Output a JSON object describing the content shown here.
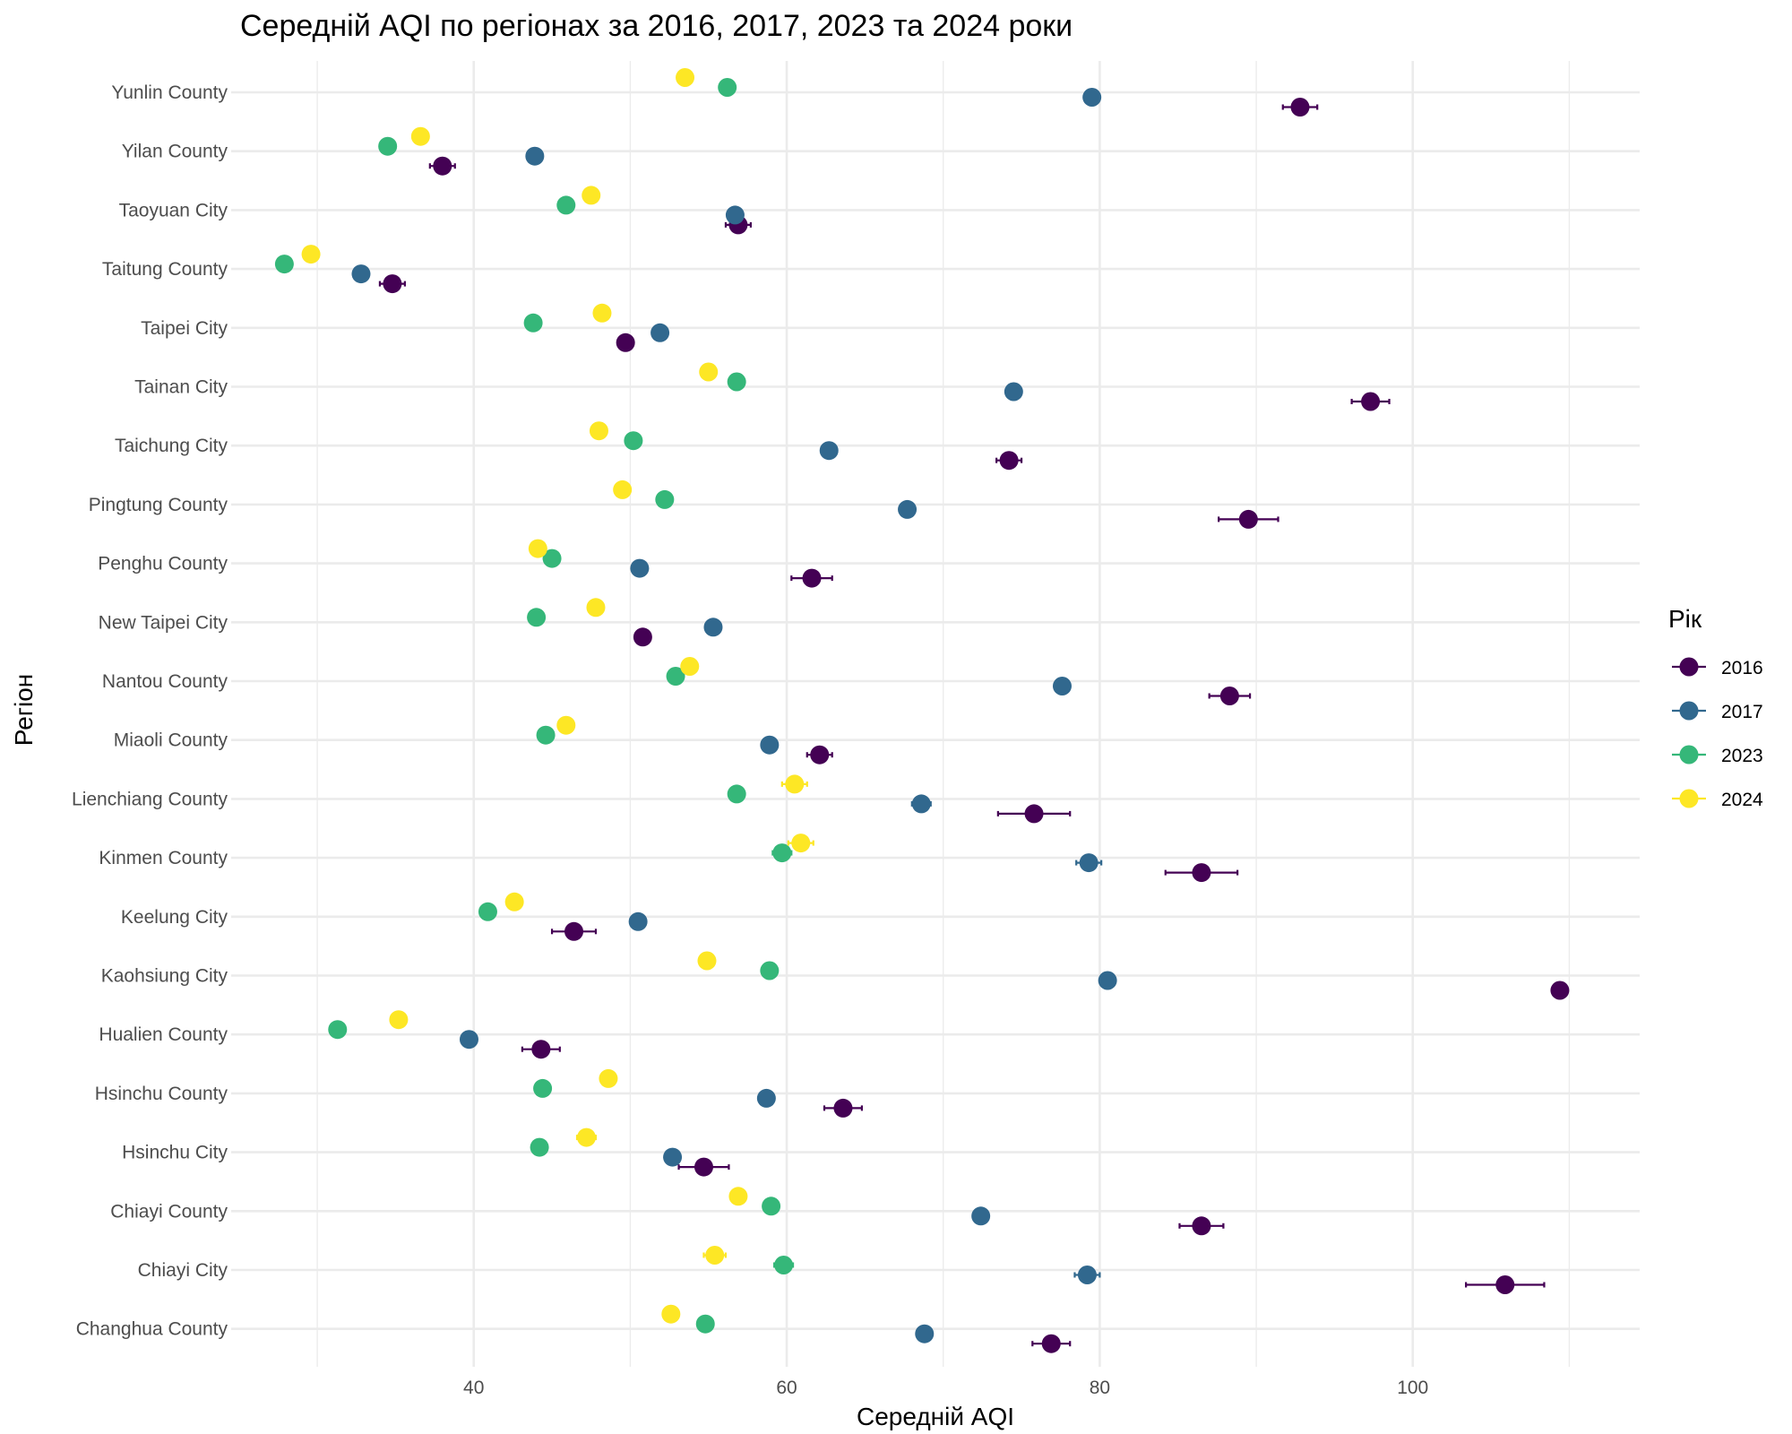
{
  "chart_data": {
    "type": "scatter",
    "title": "Середній AQI по регіонах за 2016, 2017, 2023 та 2024 роки",
    "xlabel": "Середній AQI",
    "ylabel": "Регіон",
    "xlim": [
      24.5,
      114.5
    ],
    "x_ticks": [
      40,
      60,
      80,
      100
    ],
    "x_minor_ticks": [
      30,
      50,
      70,
      90,
      110
    ],
    "grid": true,
    "legend": {
      "title": "Рік",
      "position": "right"
    },
    "categories": [
      "Yunlin County",
      "Yilan County",
      "Taoyuan City",
      "Taitung County",
      "Taipei City",
      "Tainan City",
      "Taichung City",
      "Pingtung County",
      "Penghu County",
      "New Taipei City",
      "Nantou County",
      "Miaoli County",
      "Lienchiang County",
      "Kinmen County",
      "Keelung City",
      "Kaohsiung City",
      "Hualien County",
      "Hsinchu County",
      "Hsinchu City",
      "Chiayi County",
      "Chiayi City",
      "Changhua County"
    ],
    "series": [
      {
        "name": "2016",
        "color": "#440154",
        "values": [
          92.8,
          38.0,
          56.9,
          34.8,
          49.7,
          97.3,
          74.2,
          89.5,
          61.6,
          50.8,
          88.3,
          62.1,
          75.8,
          86.5,
          46.4,
          109.4,
          44.3,
          63.6,
          54.7,
          86.5,
          105.9,
          76.9
        ],
        "errors": [
          1.1,
          0.8,
          0.8,
          0.8,
          0.5,
          1.2,
          0.8,
          1.9,
          1.3,
          0.4,
          1.3,
          0.8,
          2.3,
          2.3,
          1.4,
          0.5,
          1.2,
          1.2,
          1.6,
          1.4,
          2.5,
          1.2
        ]
      },
      {
        "name": "2017",
        "color": "#31688e",
        "values": [
          79.5,
          43.9,
          56.7,
          32.8,
          51.9,
          74.5,
          62.7,
          67.7,
          50.6,
          55.3,
          77.6,
          58.9,
          68.6,
          79.3,
          50.5,
          80.5,
          39.7,
          58.7,
          52.7,
          72.4,
          79.2,
          68.8
        ],
        "errors": [
          0.3,
          0.3,
          0.3,
          0.3,
          0.3,
          0.3,
          0.3,
          0.3,
          0.3,
          0.3,
          0.3,
          0.3,
          0.6,
          0.8,
          0.3,
          0.3,
          0.3,
          0.3,
          0.3,
          0.3,
          0.8,
          0.3
        ]
      },
      {
        "name": "2023",
        "color": "#35b779",
        "values": [
          56.2,
          34.5,
          45.9,
          27.9,
          43.8,
          56.8,
          50.2,
          52.2,
          45.0,
          44.0,
          52.9,
          44.6,
          56.8,
          59.7,
          40.9,
          58.9,
          31.3,
          44.4,
          44.2,
          59.0,
          59.8,
          54.8
        ],
        "errors": [
          0.3,
          0.3,
          0.3,
          0.3,
          0.3,
          0.3,
          0.3,
          0.3,
          0.3,
          0.3,
          0.3,
          0.3,
          0.5,
          0.6,
          0.3,
          0.3,
          0.3,
          0.3,
          0.3,
          0.3,
          0.6,
          0.3
        ]
      },
      {
        "name": "2024",
        "color": "#fde725",
        "values": [
          53.5,
          36.6,
          47.5,
          29.6,
          48.2,
          55.0,
          48.0,
          49.5,
          44.1,
          47.8,
          53.8,
          45.9,
          60.5,
          60.9,
          42.6,
          54.9,
          35.2,
          48.6,
          47.2,
          56.9,
          55.4,
          52.6
        ],
        "errors": [
          0.3,
          0.3,
          0.3,
          0.3,
          0.3,
          0.3,
          0.3,
          0.3,
          0.3,
          0.3,
          0.3,
          0.3,
          0.8,
          0.8,
          0.3,
          0.3,
          0.3,
          0.3,
          0.6,
          0.3,
          0.7,
          0.3
        ]
      }
    ]
  }
}
